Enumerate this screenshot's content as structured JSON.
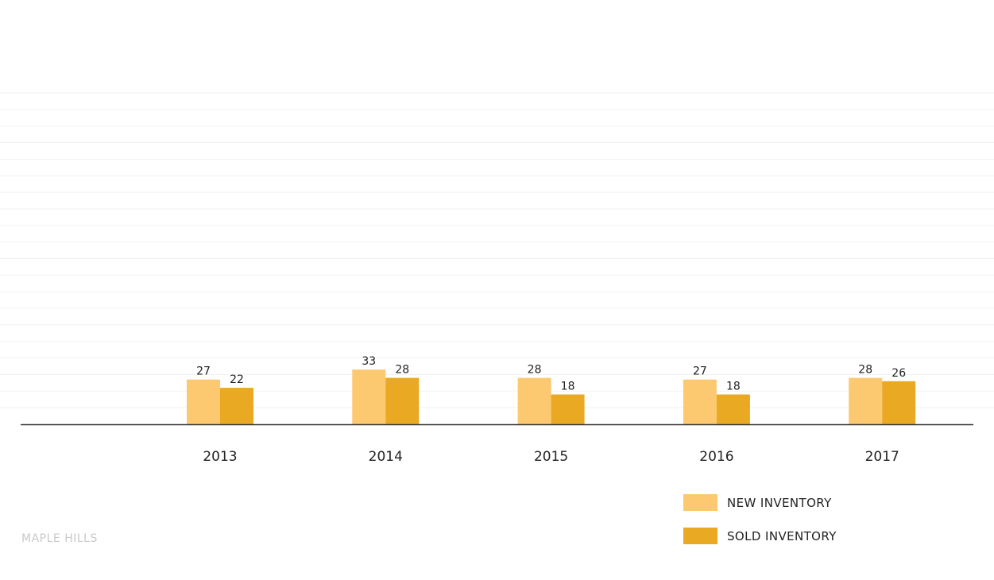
{
  "brand": {
    "name": "MAPLE HILLS"
  },
  "colors": {
    "new_inventory": "#fcc870",
    "sold_inventory": "#eaa922",
    "gridline": "#f1f1f1",
    "baseline": "#333333"
  },
  "chart_data": {
    "type": "bar",
    "categories": [
      "2013",
      "2014",
      "2015",
      "2016",
      "2017"
    ],
    "series": [
      {
        "name": "NEW INVENTORY",
        "values": [
          27,
          33,
          28,
          27,
          28
        ]
      },
      {
        "name": "SOLD INVENTORY",
        "values": [
          22,
          28,
          18,
          18,
          26
        ]
      }
    ],
    "title": "",
    "xlabel": "",
    "ylabel": "",
    "ylim": [
      0,
      200
    ],
    "grid": true,
    "data_labels": true,
    "legend_position": "bottom-right"
  }
}
